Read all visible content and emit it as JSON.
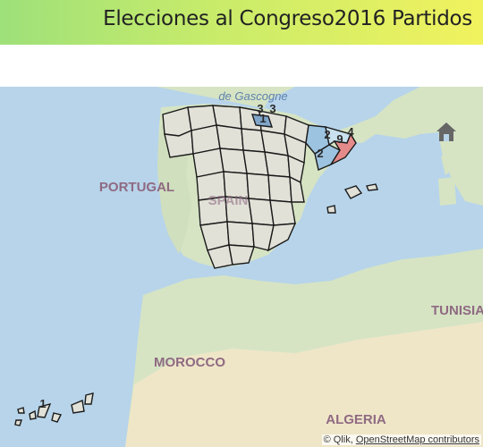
{
  "header": {
    "title": "Elecciones al Congreso2016 Partidos"
  },
  "map": {
    "labels": {
      "sea": "de Gascogne",
      "portugal": "PORTUGAL",
      "spain": "SPAIN",
      "morocco": "MOROCCO",
      "tunisia": "TUNISIA",
      "algeria": "ALGERIA"
    },
    "markers": [
      {
        "value": "3"
      },
      {
        "value": "3"
      },
      {
        "value": "1"
      },
      {
        "value": "2"
      },
      {
        "value": "4"
      },
      {
        "value": "2"
      },
      {
        "value": "9"
      },
      {
        "value": "1"
      }
    ],
    "colors": {
      "sea": "#b7d4ea",
      "land": "#d6e4c4",
      "desert": "#efe6c8",
      "region": "#e1e1d8",
      "highlight_blue": "#9cc3e0",
      "highlight_red": "#e58a8a"
    }
  },
  "controls": {
    "home_icon": "home-icon"
  },
  "attribution": {
    "prefix": "© Qlik, ",
    "link": "OpenStreetMap contributors"
  }
}
